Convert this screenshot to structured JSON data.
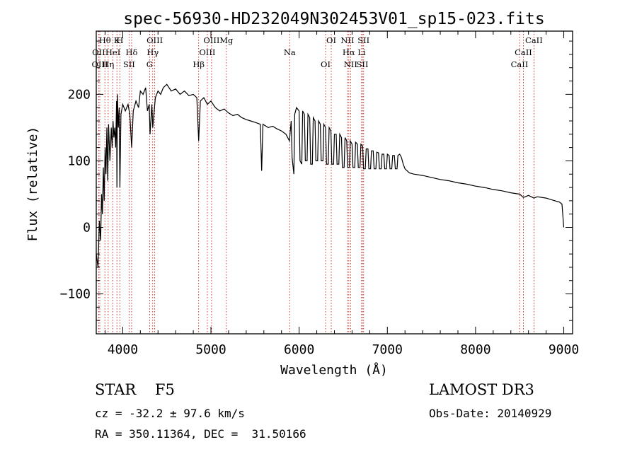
{
  "chart_data": {
    "type": "line",
    "title": "spec-56930-HD232049N302453V01_sp15-023.fits",
    "xlabel": "Wavelength (Å)",
    "ylabel": "Flux (relative)",
    "xlim": [
      3700,
      9100
    ],
    "ylim": [
      -160,
      295
    ],
    "x_ticks": [
      4000,
      5000,
      6000,
      7000,
      8000,
      9000
    ],
    "y_ticks": [
      -100,
      0,
      100,
      200
    ],
    "series": [
      {
        "name": "spectrum",
        "color": "#000000",
        "points": [
          [
            3700,
            -40
          ],
          [
            3720,
            -60
          ],
          [
            3735,
            10
          ],
          [
            3750,
            -20
          ],
          [
            3760,
            50
          ],
          [
            3770,
            20
          ],
          [
            3780,
            90
          ],
          [
            3790,
            40
          ],
          [
            3800,
            120
          ],
          [
            3810,
            80
          ],
          [
            3820,
            150
          ],
          [
            3830,
            70
          ],
          [
            3840,
            155
          ],
          [
            3855,
            100
          ],
          [
            3870,
            150
          ],
          [
            3880,
            120
          ],
          [
            3890,
            160
          ],
          [
            3900,
            135
          ],
          [
            3910,
            150
          ],
          [
            3920,
            120
          ],
          [
            3930,
            190
          ],
          [
            3934,
            60
          ],
          [
            3940,
            200
          ],
          [
            3950,
            150
          ],
          [
            3960,
            180
          ],
          [
            3968,
            60
          ],
          [
            3980,
            170
          ],
          [
            4000,
            185
          ],
          [
            4030,
            175
          ],
          [
            4060,
            185
          ],
          [
            4080,
            170
          ],
          [
            4101,
            120
          ],
          [
            4120,
            175
          ],
          [
            4150,
            190
          ],
          [
            4180,
            180
          ],
          [
            4200,
            205
          ],
          [
            4230,
            200
          ],
          [
            4260,
            210
          ],
          [
            4280,
            175
          ],
          [
            4300,
            185
          ],
          [
            4310,
            140
          ],
          [
            4330,
            185
          ],
          [
            4340,
            150
          ],
          [
            4370,
            195
          ],
          [
            4400,
            205
          ],
          [
            4430,
            200
          ],
          [
            4460,
            210
          ],
          [
            4500,
            215
          ],
          [
            4550,
            205
          ],
          [
            4600,
            208
          ],
          [
            4650,
            200
          ],
          [
            4700,
            205
          ],
          [
            4750,
            198
          ],
          [
            4800,
            200
          ],
          [
            4840,
            195
          ],
          [
            4861,
            130
          ],
          [
            4880,
            190
          ],
          [
            4920,
            195
          ],
          [
            4960,
            185
          ],
          [
            5000,
            190
          ],
          [
            5050,
            180
          ],
          [
            5100,
            175
          ],
          [
            5150,
            178
          ],
          [
            5200,
            172
          ],
          [
            5250,
            168
          ],
          [
            5300,
            170
          ],
          [
            5350,
            165
          ],
          [
            5400,
            162
          ],
          [
            5450,
            160
          ],
          [
            5500,
            158
          ],
          [
            5560,
            155
          ],
          [
            5575,
            85
          ],
          [
            5590,
            155
          ],
          [
            5650,
            150
          ],
          [
            5700,
            152
          ],
          [
            5750,
            148
          ],
          [
            5800,
            145
          ],
          [
            5850,
            140
          ],
          [
            5890,
            130
          ],
          [
            5910,
            160
          ],
          [
            5920,
            105
          ],
          [
            5940,
            80
          ],
          [
            5950,
            170
          ],
          [
            5970,
            180
          ],
          [
            6000,
            175
          ],
          [
            6010,
            100
          ],
          [
            6030,
            95
          ],
          [
            6040,
            175
          ],
          [
            6060,
            170
          ],
          [
            6070,
            100
          ],
          [
            6090,
            100
          ],
          [
            6100,
            170
          ],
          [
            6120,
            165
          ],
          [
            6130,
            95
          ],
          [
            6150,
            95
          ],
          [
            6160,
            165
          ],
          [
            6180,
            160
          ],
          [
            6190,
            100
          ],
          [
            6210,
            100
          ],
          [
            6220,
            160
          ],
          [
            6240,
            155
          ],
          [
            6250,
            100
          ],
          [
            6270,
            100
          ],
          [
            6280,
            155
          ],
          [
            6300,
            150
          ],
          [
            6310,
            95
          ],
          [
            6330,
            95
          ],
          [
            6340,
            150
          ],
          [
            6360,
            145
          ],
          [
            6370,
            95
          ],
          [
            6390,
            95
          ],
          [
            6400,
            140
          ],
          [
            6420,
            140
          ],
          [
            6430,
            95
          ],
          [
            6450,
            95
          ],
          [
            6460,
            140
          ],
          [
            6480,
            135
          ],
          [
            6490,
            90
          ],
          [
            6510,
            90
          ],
          [
            6520,
            135
          ],
          [
            6540,
            130
          ],
          [
            6550,
            90
          ],
          [
            6570,
            90
          ],
          [
            6580,
            130
          ],
          [
            6600,
            125
          ],
          [
            6610,
            90
          ],
          [
            6630,
            90
          ],
          [
            6640,
            128
          ],
          [
            6660,
            125
          ],
          [
            6670,
            90
          ],
          [
            6690,
            90
          ],
          [
            6700,
            125
          ],
          [
            6720,
            122
          ],
          [
            6730,
            88
          ],
          [
            6750,
            88
          ],
          [
            6760,
            118
          ],
          [
            6780,
            118
          ],
          [
            6790,
            88
          ],
          [
            6810,
            88
          ],
          [
            6820,
            115
          ],
          [
            6840,
            115
          ],
          [
            6850,
            88
          ],
          [
            6870,
            88
          ],
          [
            6880,
            113
          ],
          [
            6900,
            112
          ],
          [
            6910,
            88
          ],
          [
            6930,
            88
          ],
          [
            6940,
            110
          ],
          [
            6960,
            110
          ],
          [
            6970,
            88
          ],
          [
            6990,
            88
          ],
          [
            7000,
            110
          ],
          [
            7020,
            108
          ],
          [
            7030,
            88
          ],
          [
            7050,
            88
          ],
          [
            7060,
            108
          ],
          [
            7080,
            108
          ],
          [
            7090,
            88
          ],
          [
            7110,
            88
          ],
          [
            7120,
            108
          ],
          [
            7140,
            110
          ],
          [
            7160,
            105
          ],
          [
            7180,
            95
          ],
          [
            7200,
            88
          ],
          [
            7250,
            82
          ],
          [
            7300,
            80
          ],
          [
            7400,
            78
          ],
          [
            7500,
            75
          ],
          [
            7600,
            72
          ],
          [
            7700,
            70
          ],
          [
            7800,
            67
          ],
          [
            7900,
            65
          ],
          [
            8000,
            62
          ],
          [
            8100,
            60
          ],
          [
            8200,
            57
          ],
          [
            8300,
            55
          ],
          [
            8400,
            52
          ],
          [
            8500,
            50
          ],
          [
            8542,
            45
          ],
          [
            8600,
            48
          ],
          [
            8662,
            44
          ],
          [
            8700,
            46
          ],
          [
            8800,
            44
          ],
          [
            8900,
            40
          ],
          [
            8950,
            38
          ],
          [
            8980,
            35
          ],
          [
            9000,
            0
          ]
        ]
      }
    ],
    "line_markers": [
      {
        "label": "Hθ",
        "x": 3798
      },
      {
        "label": "OII",
        "x": 3727
      },
      {
        "label": "OIII",
        "x": 3740
      },
      {
        "label": "K",
        "x": 3934
      },
      {
        "label": "HeI",
        "x": 3889
      },
      {
        "label": "Hη",
        "x": 3835
      },
      {
        "label": "H",
        "x": 3968
      },
      {
        "label": "Hδ",
        "x": 4101
      },
      {
        "label": "SII",
        "x": 4072
      },
      {
        "label": "OIII",
        "x": 4363
      },
      {
        "label": "Hγ",
        "x": 4340
      },
      {
        "label": "G",
        "x": 4305
      },
      {
        "label": "OIII",
        "x": 5007
      },
      {
        "label": "OIII",
        "x": 4959
      },
      {
        "label": "Hβ",
        "x": 4861
      },
      {
        "label": "Mg",
        "x": 5175
      },
      {
        "label": "Na",
        "x": 5893
      },
      {
        "label": "OI",
        "x": 6300
      },
      {
        "label": "OI",
        "x": 6364
      },
      {
        "label": "Hα",
        "x": 6563
      },
      {
        "label": "SII",
        "x": 6717
      },
      {
        "label": "NII",
        "x": 6548
      },
      {
        "label": "Li",
        "x": 6708
      },
      {
        "label": "NII",
        "x": 6583
      },
      {
        "label": "SII",
        "x": 6731
      },
      {
        "label": "CaII",
        "x": 8542
      },
      {
        "label": "CaII",
        "x": 8498
      },
      {
        "label": "CaII",
        "x": 8662
      }
    ]
  },
  "info": {
    "class": "STAR    F5",
    "survey": "LAMOST DR3",
    "cz": "cz = -32.2 ± 97.6 km/s",
    "obs_date": "Obs-Date: 20140929",
    "coords": "RA = 350.11364, DEC =  31.50166"
  }
}
